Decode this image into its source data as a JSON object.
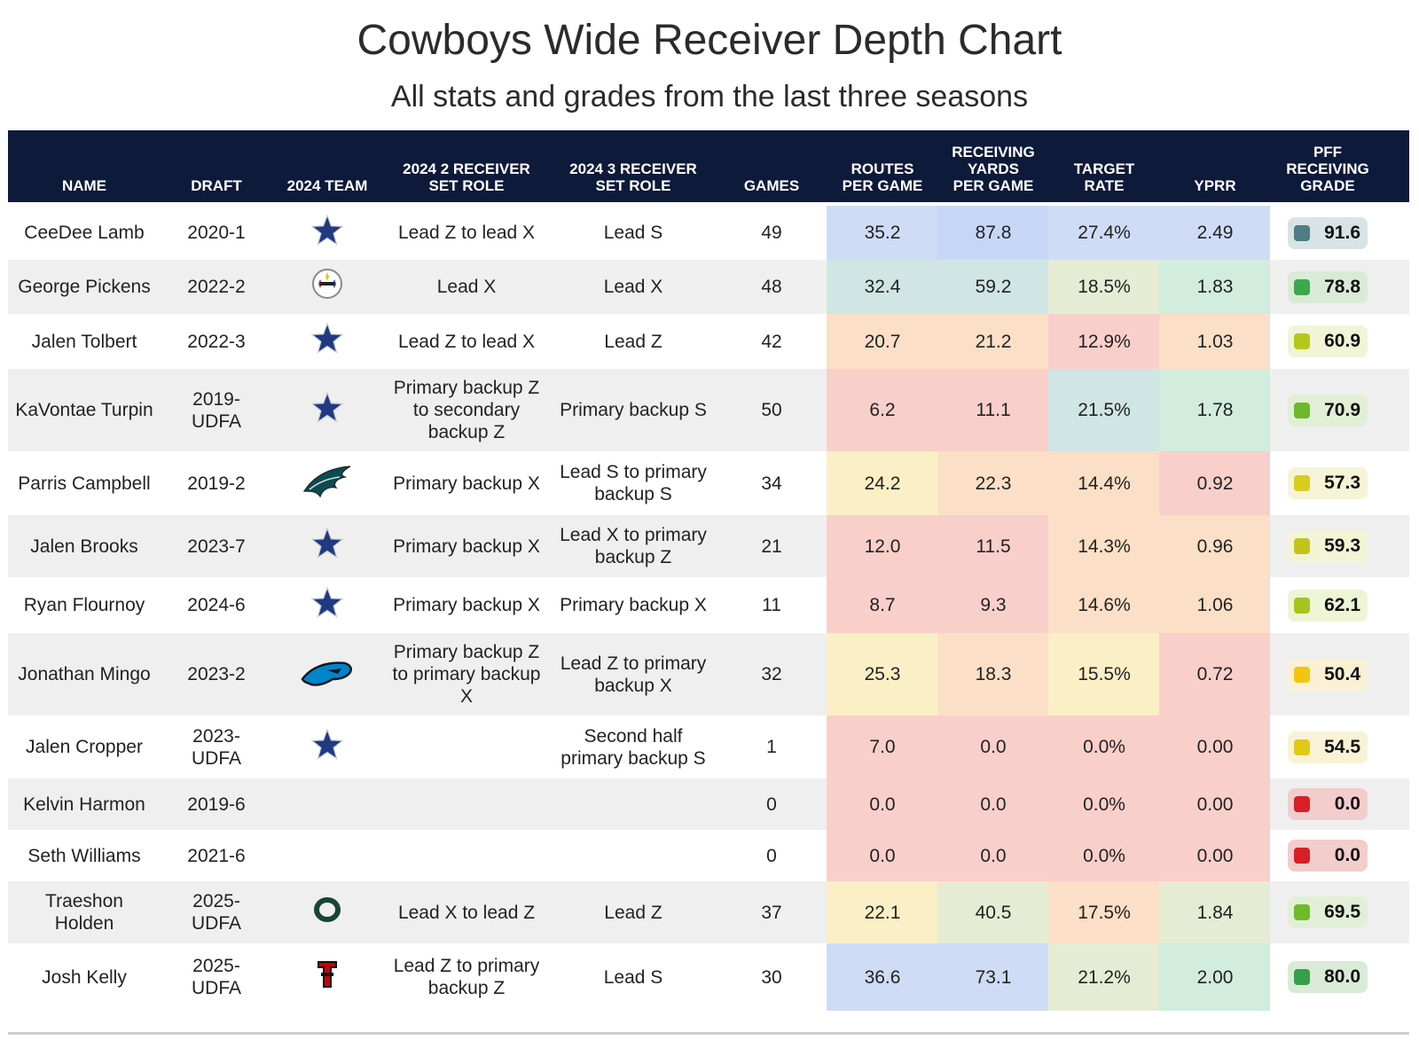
{
  "title": "Cowboys Wide Receiver Depth Chart",
  "subtitle": "All stats and grades from the last three seasons",
  "columns": [
    {
      "key": "name",
      "label": "NAME"
    },
    {
      "key": "draft",
      "label": "DRAFT"
    },
    {
      "key": "team",
      "label": "2024 TEAM"
    },
    {
      "key": "role2",
      "label": "2024 2 RECEIVER\nSET ROLE"
    },
    {
      "key": "role3",
      "label": "2024 3 RECEIVER\nSET ROLE"
    },
    {
      "key": "games",
      "label": "GAMES"
    },
    {
      "key": "routes",
      "label": "ROUTES\nPER GAME"
    },
    {
      "key": "yards",
      "label": "RECEIVING\nYARDS\nPER GAME"
    },
    {
      "key": "target",
      "label": "TARGET\nRATE"
    },
    {
      "key": "yprr",
      "label": "YPRR"
    },
    {
      "key": "grade",
      "label": "PFF\nRECEIVING\nGRADE"
    }
  ],
  "colors": {
    "header_bg": "#0e1a3a",
    "heat_blue": "#cfdcf6",
    "heat_blue2": "#c6d7f6",
    "heat_teal": "#cfe6e4",
    "heat_green": "#d2ecdd",
    "heat_lightgreen": "#e6ecd4",
    "heat_yellow": "#fbefc6",
    "heat_peach": "#fbdfc6",
    "heat_red": "#f9cfca"
  },
  "chart_data": {
    "type": "table",
    "title": "Cowboys Wide Receiver Depth Chart",
    "subtitle": "All stats and grades from the last three seasons",
    "rows": [
      {
        "name": "CeeDee Lamb",
        "draft": "2020-1",
        "team_icon": "cowboys-star-icon",
        "role2": "Lead Z to lead X",
        "role3": "Lead S",
        "games": "49",
        "routes": "35.2",
        "yards": "87.8",
        "target": "27.4%",
        "yprr": "2.49",
        "grade": "91.6",
        "grade_value": 91.6,
        "grade_color": "#4e7d83",
        "grade_bg": "#d8e3e5",
        "heat": [
          "#cfdcf6",
          "#c6d7f6",
          "#cfdcf6",
          "#cfdcf6"
        ]
      },
      {
        "name": "George Pickens",
        "draft": "2022-2",
        "team_icon": "steelers-logo-icon",
        "role2": "Lead X",
        "role3": "Lead X",
        "games": "48",
        "routes": "32.4",
        "yards": "59.2",
        "target": "18.5%",
        "yprr": "1.83",
        "grade": "78.8",
        "grade_value": 78.8,
        "grade_color": "#3aa84b",
        "grade_bg": "#d9ebd6",
        "heat": [
          "#cfe6e4",
          "#cfe6e4",
          "#e6ecd4",
          "#d2ecdd"
        ]
      },
      {
        "name": "Jalen Tolbert",
        "draft": "2022-3",
        "team_icon": "cowboys-star-icon",
        "role2": "Lead Z to lead X",
        "role3": "Lead Z",
        "games": "42",
        "routes": "20.7",
        "yards": "21.2",
        "target": "12.9%",
        "yprr": "1.03",
        "grade": "60.9",
        "grade_value": 60.9,
        "grade_color": "#b5c81a",
        "grade_bg": "#f1f5d6",
        "heat": [
          "#fbdfc6",
          "#fbdfc6",
          "#f9cfca",
          "#fbdfc6"
        ]
      },
      {
        "name": "KaVontae Turpin",
        "draft": "2019-UDFA",
        "team_icon": "cowboys-star-icon",
        "role2": "Primary backup Z\nto secondary\nbackup Z",
        "role3": "Primary backup S",
        "games": "50",
        "routes": "6.2",
        "yards": "11.1",
        "target": "21.5%",
        "yprr": "1.78",
        "grade": "70.9",
        "grade_value": 70.9,
        "grade_color": "#6cba2a",
        "grade_bg": "#e2efd6",
        "heat": [
          "#f9cfca",
          "#f9cfca",
          "#cfe6e4",
          "#d2ecdd"
        ]
      },
      {
        "name": "Parris Campbell",
        "draft": "2019-2",
        "team_icon": "eagles-logo-icon",
        "role2": "Primary backup X",
        "role3": "Lead S to primary\nbackup S",
        "games": "34",
        "routes": "24.2",
        "yards": "22.3",
        "target": "14.4%",
        "yprr": "0.92",
        "grade": "57.3",
        "grade_value": 57.3,
        "grade_color": "#d8cc1c",
        "grade_bg": "#f6f4d6",
        "heat": [
          "#fbefc6",
          "#fbdfc6",
          "#fbdfc6",
          "#f9cfca"
        ]
      },
      {
        "name": "Jalen Brooks",
        "draft": "2023-7",
        "team_icon": "cowboys-star-icon",
        "role2": "Primary backup X",
        "role3": "Lead X to primary\nbackup Z",
        "games": "21",
        "routes": "12.0",
        "yards": "11.5",
        "target": "14.3%",
        "yprr": "0.96",
        "grade": "59.3",
        "grade_value": 59.3,
        "grade_color": "#c2c41c",
        "grade_bg": "#f3f4d6",
        "heat": [
          "#f9cfca",
          "#f9cfca",
          "#fbdfc6",
          "#fbdfc6"
        ]
      },
      {
        "name": "Ryan Flournoy",
        "draft": "2024-6",
        "team_icon": "cowboys-star-icon",
        "role2": "Primary backup X",
        "role3": "Primary backup X",
        "games": "11",
        "routes": "8.7",
        "yards": "9.3",
        "target": "14.6%",
        "yprr": "1.06",
        "grade": "62.1",
        "grade_value": 62.1,
        "grade_color": "#a8c41e",
        "grade_bg": "#eef4d6",
        "heat": [
          "#f9cfca",
          "#f9cfca",
          "#fbdfc6",
          "#fbdfc6"
        ]
      },
      {
        "name": "Jonathan Mingo",
        "draft": "2023-2",
        "team_icon": "panthers-logo-icon",
        "role2": "Primary backup Z\nto primary backup\nX",
        "role3": "Lead Z to primary\nbackup X",
        "games": "32",
        "routes": "25.3",
        "yards": "18.3",
        "target": "15.5%",
        "yprr": "0.72",
        "grade": "50.4",
        "grade_value": 50.4,
        "grade_color": "#f2c50e",
        "grade_bg": "#faf1d4",
        "heat": [
          "#fbefc6",
          "#fbdfc6",
          "#fbefc6",
          "#f9cfca"
        ]
      },
      {
        "name": "Jalen Cropper",
        "draft": "2023-UDFA",
        "team_icon": "cowboys-star-icon",
        "role2": "",
        "role3": "Second half\nprimary backup S",
        "games": "1",
        "routes": "7.0",
        "yards": "0.0",
        "target": "0.0%",
        "yprr": "0.00",
        "grade": "54.5",
        "grade_value": 54.5,
        "grade_color": "#e2c816",
        "grade_bg": "#f8f3d6",
        "heat": [
          "#f9cfca",
          "#f9cfca",
          "#f9cfca",
          "#f9cfca"
        ]
      },
      {
        "name": "Kelvin Harmon",
        "draft": "2019-6",
        "team_icon": "",
        "role2": "",
        "role3": "",
        "games": "0",
        "routes": "0.0",
        "yards": "0.0",
        "target": "0.0%",
        "yprr": "0.00",
        "grade": "0.0",
        "grade_value": 0.0,
        "grade_color": "#d81f26",
        "grade_bg": "#f3cccc",
        "heat": [
          "#f9cfca",
          "#f9cfca",
          "#f9cfca",
          "#f9cfca"
        ]
      },
      {
        "name": "Seth Williams",
        "draft": "2021-6",
        "team_icon": "",
        "role2": "",
        "role3": "",
        "games": "0",
        "routes": "0.0",
        "yards": "0.0",
        "target": "0.0%",
        "yprr": "0.00",
        "grade": "0.0",
        "grade_value": 0.0,
        "grade_color": "#d81f26",
        "grade_bg": "#f3cccc",
        "heat": [
          "#f9cfca",
          "#f9cfca",
          "#f9cfca",
          "#f9cfca"
        ]
      },
      {
        "name": "Traeshon\nHolden",
        "draft": "2025-UDFA",
        "team_icon": "oregon-logo-icon",
        "role2": "Lead X to lead Z",
        "role3": "Lead Z",
        "games": "37",
        "routes": "22.1",
        "yards": "40.5",
        "target": "17.5%",
        "yprr": "1.84",
        "grade": "69.5",
        "grade_value": 69.5,
        "grade_color": "#6dbb2a",
        "grade_bg": "#e2efd6",
        "heat": [
          "#fbefc6",
          "#e6ecd4",
          "#fbdfc6",
          "#e6ecd4"
        ]
      },
      {
        "name": "Josh Kelly",
        "draft": "2025-UDFA",
        "team_icon": "texas-tech-logo-icon",
        "role2": "Lead Z to primary\nbackup Z",
        "role3": "Lead S",
        "games": "30",
        "routes": "36.6",
        "yards": "73.1",
        "target": "21.2%",
        "yprr": "2.00",
        "grade": "80.0",
        "grade_value": 80.0,
        "grade_color": "#35a048",
        "grade_bg": "#d9ebd6",
        "heat": [
          "#cfdcf6",
          "#cfdcf6",
          "#e6ecd4",
          "#d2ecdd"
        ]
      }
    ]
  }
}
